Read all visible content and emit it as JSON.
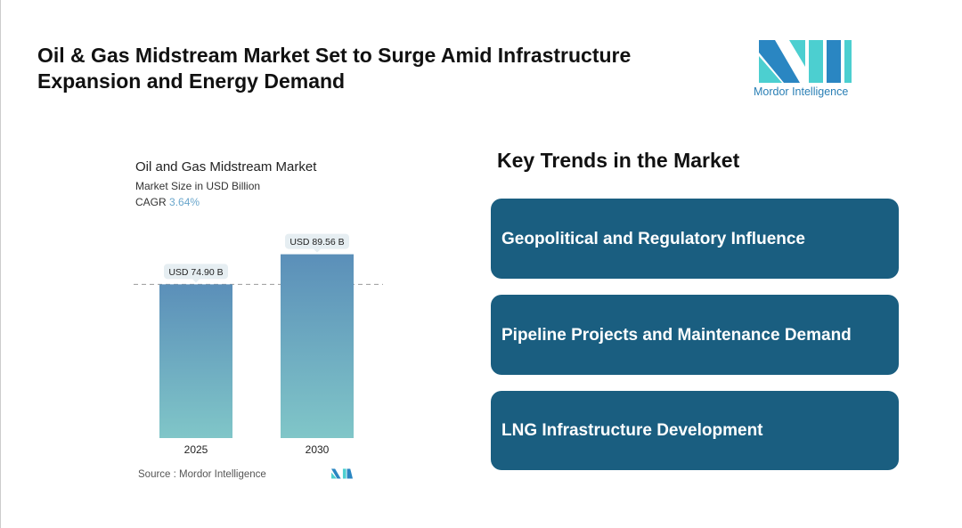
{
  "title": "Oil & Gas Midstream Market Set to Surge Amid Infrastructure Expansion and Energy Demand",
  "logo": {
    "text": "Mordor Intelligence"
  },
  "chart_data": {
    "type": "bar",
    "title": "Oil and Gas Midstream Market",
    "subtitle": "Market Size in USD Billion",
    "cagr_label": "CAGR",
    "cagr_value": "3.64%",
    "categories": [
      "2025",
      "2030"
    ],
    "values": [
      74.9,
      89.56
    ],
    "data_labels": [
      "USD 74.90 B",
      "USD 89.56 B"
    ],
    "ylim": [
      0,
      100
    ],
    "source": "Source :  Mordor Intelligence"
  },
  "trends": {
    "heading": "Key Trends in the Market",
    "items": [
      "Geopolitical and Regulatory Influence",
      "Pipeline Projects and Maintenance Demand",
      "LNG Infrastructure Development"
    ]
  },
  "colors": {
    "card": "#1a5e80",
    "bar_top": "#5b8fb9",
    "bar_bottom": "#80c6c8"
  }
}
